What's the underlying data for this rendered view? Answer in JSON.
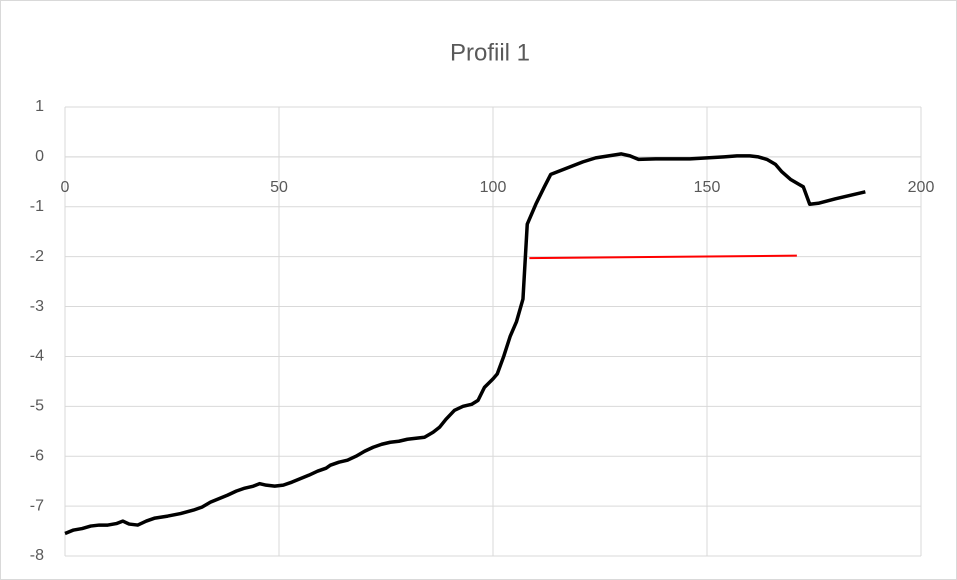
{
  "chart_data": {
    "type": "line",
    "title": "Profiil 1",
    "xlim": [
      0,
      200
    ],
    "xticks": [
      0,
      50,
      100,
      150,
      200
    ],
    "ylim": [
      -8,
      1
    ],
    "yticks": [
      1,
      0,
      -1,
      -2,
      -3,
      -4,
      -5,
      -6,
      -7,
      -8
    ],
    "grid": true,
    "series": [
      {
        "color": "#000000",
        "x": [
          0,
          2,
          4,
          6,
          8,
          10,
          12,
          13.5,
          15,
          17,
          19,
          21,
          24,
          27,
          30,
          32,
          34,
          36,
          38,
          40,
          42,
          44,
          45.5,
          47,
          49,
          51,
          53,
          55,
          57,
          59,
          61,
          62,
          64,
          66,
          68,
          70,
          72,
          74,
          76,
          78,
          80,
          82,
          84,
          86,
          87.5,
          89,
          91,
          93,
          95,
          96.5,
          98,
          100,
          101,
          102.5,
          104,
          105.5,
          107,
          108,
          110,
          112,
          113.5,
          115,
          118,
          121,
          124,
          127,
          130,
          132,
          134,
          138,
          142,
          146,
          150,
          154,
          157,
          160,
          162,
          164,
          166,
          167.5,
          169.5,
          171.5,
          172.5,
          174,
          176,
          180,
          184,
          187
        ],
        "values": [
          -7.55,
          -7.48,
          -7.45,
          -7.4,
          -7.38,
          -7.38,
          -7.35,
          -7.3,
          -7.36,
          -7.38,
          -7.3,
          -7.24,
          -7.2,
          -7.15,
          -7.08,
          -7.02,
          -6.92,
          -6.85,
          -6.78,
          -6.7,
          -6.64,
          -6.6,
          -6.55,
          -6.58,
          -6.6,
          -6.58,
          -6.52,
          -6.45,
          -6.38,
          -6.3,
          -6.24,
          -6.18,
          -6.12,
          -6.08,
          -6.0,
          -5.9,
          -5.82,
          -5.76,
          -5.72,
          -5.7,
          -5.66,
          -5.64,
          -5.62,
          -5.52,
          -5.42,
          -5.26,
          -5.08,
          -5.0,
          -4.96,
          -4.88,
          -4.62,
          -4.45,
          -4.35,
          -4.0,
          -3.6,
          -3.3,
          -2.85,
          -1.35,
          -0.95,
          -0.6,
          -0.35,
          -0.3,
          -0.2,
          -0.1,
          -0.02,
          0.02,
          0.06,
          0.02,
          -0.05,
          -0.04,
          -0.04,
          -0.04,
          -0.02,
          0.0,
          0.02,
          0.02,
          0.0,
          -0.05,
          -0.15,
          -0.3,
          -0.45,
          -0.55,
          -0.6,
          -0.95,
          -0.93,
          -0.84,
          -0.76,
          -0.7
        ]
      },
      {
        "color": "#ff0000",
        "x": [
          108.5,
          171
        ],
        "values": [
          -2.03,
          -1.98
        ]
      }
    ]
  }
}
